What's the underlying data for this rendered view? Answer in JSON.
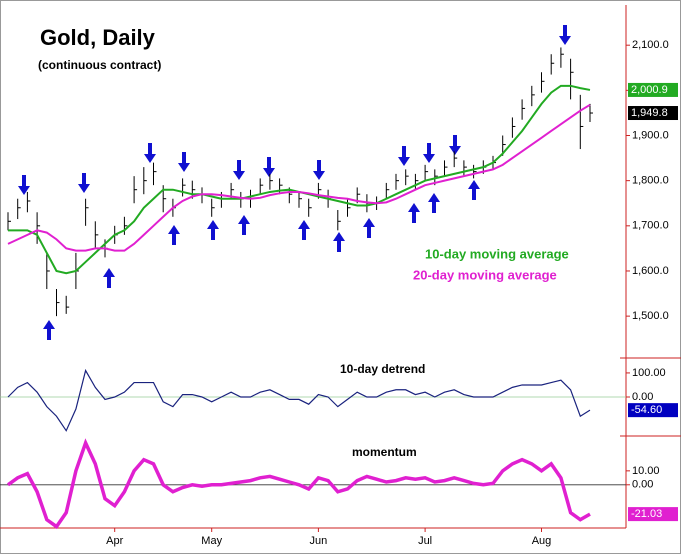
{
  "chart_data": [
    {
      "type": "ohlc",
      "title": "Gold, Daily",
      "subtitle": "(continuous contract)",
      "categories": [
        null,
        null,
        null,
        null,
        null,
        null,
        null,
        null,
        null,
        null,
        null,
        "Apr",
        null,
        null,
        null,
        null,
        null,
        null,
        null,
        null,
        null,
        "May",
        null,
        null,
        null,
        null,
        null,
        null,
        null,
        null,
        null,
        null,
        "Jun",
        null,
        null,
        null,
        null,
        null,
        null,
        null,
        null,
        null,
        null,
        "Jul",
        null,
        null,
        null,
        null,
        null,
        null,
        null,
        null,
        null,
        null,
        null,
        "Aug",
        null,
        null,
        null,
        null,
        null
      ],
      "high": [
        1730,
        1760,
        1775,
        1730,
        1640,
        1560,
        1545,
        1640,
        1760,
        1710,
        1670,
        1700,
        1720,
        1810,
        1830,
        1840,
        1790,
        1760,
        1805,
        1800,
        1785,
        1760,
        1775,
        1795,
        1775,
        1780,
        1805,
        1815,
        1805,
        1785,
        1775,
        1760,
        1795,
        1780,
        1735,
        1760,
        1785,
        1770,
        1765,
        1795,
        1815,
        1825,
        1815,
        1835,
        1825,
        1845,
        1865,
        1845,
        1835,
        1845,
        1855,
        1900,
        1940,
        1980,
        2010,
        2040,
        2080,
        2095,
        2070,
        1990,
        1970
      ],
      "low": [
        1690,
        1715,
        1730,
        1660,
        1560,
        1500,
        1505,
        1560,
        1700,
        1650,
        1630,
        1660,
        1680,
        1750,
        1770,
        1790,
        1730,
        1720,
        1765,
        1760,
        1750,
        1720,
        1740,
        1760,
        1740,
        1740,
        1770,
        1780,
        1770,
        1750,
        1740,
        1720,
        1760,
        1740,
        1690,
        1720,
        1750,
        1730,
        1735,
        1760,
        1780,
        1790,
        1780,
        1800,
        1790,
        1810,
        1830,
        1810,
        1805,
        1815,
        1825,
        1855,
        1895,
        1935,
        1965,
        1995,
        2035,
        2050,
        1980,
        1870,
        1930
      ],
      "close": [
        1710,
        1740,
        1755,
        1700,
        1600,
        1530,
        1520,
        1600,
        1740,
        1680,
        1650,
        1680,
        1700,
        1780,
        1800,
        1820,
        1760,
        1740,
        1790,
        1780,
        1770,
        1740,
        1760,
        1780,
        1760,
        1760,
        1790,
        1800,
        1790,
        1770,
        1760,
        1740,
        1780,
        1760,
        1710,
        1740,
        1770,
        1750,
        1750,
        1780,
        1800,
        1810,
        1800,
        1820,
        1810,
        1830,
        1850,
        1830,
        1820,
        1830,
        1840,
        1880,
        1920,
        1960,
        1990,
        2020,
        2060,
        2080,
        2040,
        1920,
        1949.8
      ],
      "close_label": "1,949.8",
      "series": [
        {
          "name": "10-day moving average",
          "color": "#22aa22",
          "last_label": "2,000.9",
          "values": [
            1690,
            1690,
            1690,
            1680,
            1640,
            1600,
            1595,
            1600,
            1620,
            1640,
            1660,
            1680,
            1690,
            1710,
            1740,
            1760,
            1780,
            1780,
            1775,
            1770,
            1770,
            1765,
            1760,
            1760,
            1760,
            1765,
            1770,
            1775,
            1778,
            1780,
            1775,
            1770,
            1765,
            1760,
            1755,
            1750,
            1745,
            1745,
            1750,
            1760,
            1770,
            1780,
            1790,
            1800,
            1805,
            1810,
            1815,
            1820,
            1825,
            1830,
            1840,
            1860,
            1885,
            1910,
            1940,
            1970,
            1995,
            2010,
            2010,
            2005,
            2000.9
          ]
        },
        {
          "name": "20-day moving average",
          "color": "#e020d0",
          "values": [
            1660,
            1670,
            1680,
            1690,
            1685,
            1670,
            1650,
            1645,
            1645,
            1650,
            1650,
            1645,
            1645,
            1660,
            1680,
            1700,
            1720,
            1740,
            1755,
            1765,
            1770,
            1770,
            1768,
            1765,
            1762,
            1760,
            1762,
            1768,
            1772,
            1775,
            1775,
            1772,
            1768,
            1765,
            1762,
            1760,
            1755,
            1752,
            1750,
            1752,
            1760,
            1770,
            1780,
            1790,
            1795,
            1800,
            1805,
            1810,
            1815,
            1820,
            1825,
            1835,
            1850,
            1865,
            1880,
            1895,
            1910,
            1925,
            1940,
            1955,
            1968
          ]
        }
      ],
      "ylim": [
        1425,
        2189
      ],
      "yticks": [
        {
          "value": 1500,
          "label": "1,500.0"
        },
        {
          "value": 1600,
          "label": "1,600.0"
        },
        {
          "value": 1700,
          "label": "1,700.0"
        },
        {
          "value": 1800,
          "label": "1,800.0"
        },
        {
          "value": 1900,
          "label": "1,900.0"
        },
        {
          "value": 2000,
          "label": "2,000.0"
        },
        {
          "value": 2100,
          "label": "2,100.0"
        }
      ]
    },
    {
      "type": "line",
      "title": "10-day detrend",
      "color": "#1a237e",
      "last_label": "-54.60",
      "values": [
        0,
        40,
        60,
        20,
        -40,
        -80,
        -140,
        -50,
        110,
        40,
        -10,
        0,
        20,
        60,
        60,
        60,
        -20,
        -40,
        10,
        10,
        0,
        -20,
        0,
        20,
        0,
        0,
        20,
        30,
        10,
        -10,
        -10,
        -30,
        10,
        0,
        -40,
        -10,
        20,
        0,
        0,
        20,
        30,
        30,
        10,
        20,
        0,
        20,
        30,
        10,
        0,
        0,
        0,
        20,
        40,
        50,
        50,
        50,
        60,
        70,
        30,
        -80,
        -54.6
      ],
      "ylim": [
        -162,
        162
      ],
      "yticks": [
        {
          "value": 100,
          "label": "100.00"
        },
        {
          "value": 0,
          "label": "0.00"
        }
      ]
    },
    {
      "type": "line",
      "title": "momentum",
      "color": "#e020d0",
      "last_label": "-21.03",
      "values": [
        0,
        5,
        8,
        -5,
        -25,
        -30,
        -20,
        10,
        30,
        15,
        -10,
        -15,
        -5,
        10,
        18,
        15,
        0,
        -5,
        -2,
        0,
        -1,
        0,
        0,
        1,
        2,
        3,
        5,
        6,
        4,
        2,
        0,
        -3,
        5,
        3,
        -5,
        -3,
        3,
        6,
        4,
        2,
        3,
        5,
        4,
        5,
        2,
        3,
        5,
        3,
        1,
        0,
        1,
        10,
        15,
        18,
        15,
        10,
        15,
        5,
        -20,
        -25,
        -21.03
      ],
      "ylim": [
        -31,
        35
      ],
      "yticks": [
        {
          "value": 10,
          "label": "10.00"
        },
        {
          "value": 0,
          "label": "0.00"
        }
      ]
    }
  ]
}
